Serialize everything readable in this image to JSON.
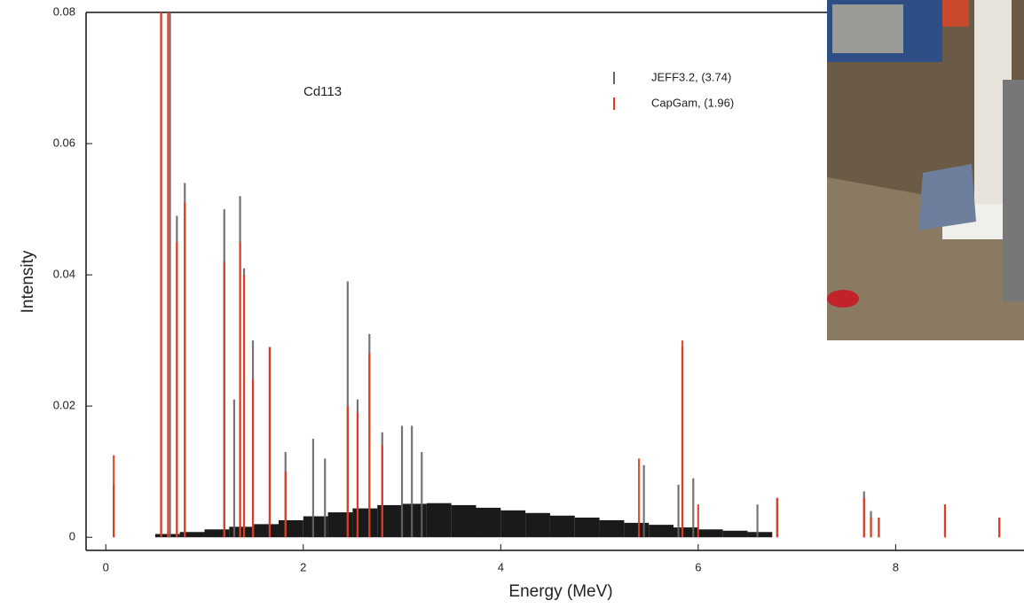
{
  "chart_data": {
    "type": "spectrum",
    "annotation": "Cd113",
    "x_label": "Energy (MeV)",
    "y_label": "Intensity",
    "xlim": [
      -0.2,
      9.3
    ],
    "ylim": [
      -0.002,
      0.08
    ],
    "xticks": [
      0,
      2,
      4,
      6,
      8
    ],
    "yticks": [
      0,
      0.02,
      0.04,
      0.06,
      0.08
    ],
    "continuum": {
      "color": "#1a1a1a",
      "bins": [
        0.5,
        0.75,
        1.0,
        1.25,
        1.5,
        1.75,
        2.0,
        2.25,
        2.5,
        2.75,
        3.0,
        3.25,
        3.5,
        3.75,
        4.0,
        4.25,
        4.5,
        4.75,
        5.0,
        5.25,
        5.5,
        5.75,
        6.0,
        6.25,
        6.5,
        6.75
      ],
      "values": [
        0.0005,
        0.0008,
        0.0012,
        0.0016,
        0.002,
        0.0026,
        0.0032,
        0.0038,
        0.0044,
        0.0049,
        0.0051,
        0.0052,
        0.0049,
        0.0045,
        0.0041,
        0.0037,
        0.0033,
        0.003,
        0.0026,
        0.0022,
        0.0019,
        0.0015,
        0.0012,
        0.001,
        0.0008
      ]
    },
    "series": [
      {
        "name": "JEFF3.2, (3.74)",
        "color": "#666666",
        "x": [
          0.08,
          0.56,
          0.65,
          0.72,
          0.8,
          1.2,
          1.3,
          1.36,
          1.4,
          1.49,
          1.66,
          1.82,
          2.1,
          2.22,
          2.45,
          2.55,
          2.67,
          2.8,
          3.0,
          3.1,
          3.2,
          5.45,
          5.8,
          5.84,
          5.95,
          6.6,
          6.8,
          7.68,
          7.75,
          7.83,
          8.5,
          9.05
        ],
        "values": [
          0.008,
          0.08,
          0.08,
          0.049,
          0.054,
          0.05,
          0.021,
          0.052,
          0.041,
          0.03,
          0.029,
          0.013,
          0.015,
          0.012,
          0.039,
          0.021,
          0.031,
          0.016,
          0.017,
          0.017,
          0.013,
          0.011,
          0.008,
          0.029,
          0.009,
          0.005,
          0.006,
          0.007,
          0.004,
          0.003,
          0.005,
          0.003
        ]
      },
      {
        "name": "CapGam, (1.96)",
        "color": "#e8381b",
        "x": [
          0.08,
          0.56,
          0.63,
          0.72,
          0.8,
          1.2,
          1.36,
          1.4,
          1.49,
          1.66,
          1.82,
          2.45,
          2.55,
          2.67,
          2.8,
          5.4,
          5.84,
          6.0,
          6.8,
          7.68,
          7.75,
          7.83,
          8.5,
          9.05
        ],
        "values": [
          0.0125,
          0.08,
          0.08,
          0.045,
          0.051,
          0.042,
          0.045,
          0.04,
          0.024,
          0.029,
          0.01,
          0.02,
          0.019,
          0.028,
          0.014,
          0.012,
          0.03,
          0.005,
          0.006,
          0.006,
          0.003,
          0.003,
          0.005,
          0.003
        ]
      }
    ]
  }
}
